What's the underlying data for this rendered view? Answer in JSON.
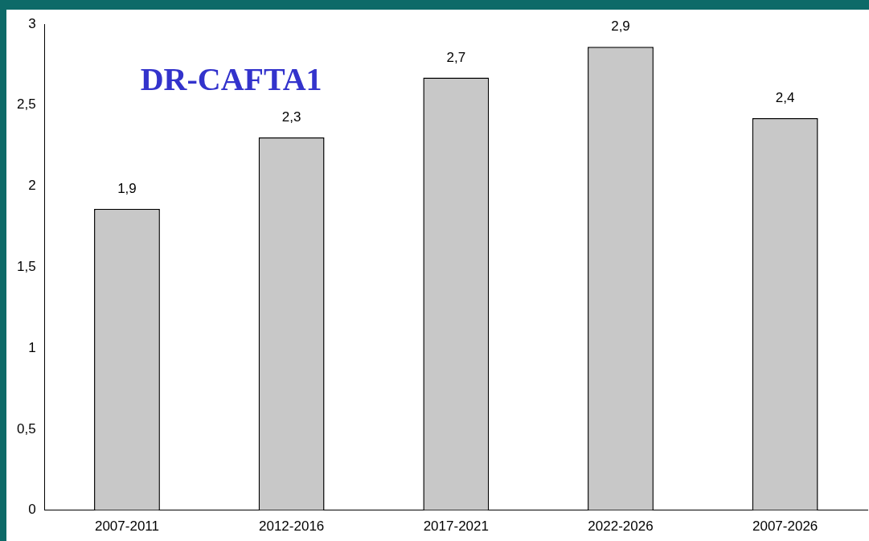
{
  "chart_data": {
    "type": "bar",
    "title": "DR-CAFTA1",
    "categories": [
      "2007-2011",
      "2012-2016",
      "2017-2021",
      "2022-2026",
      "2007-2026"
    ],
    "values": [
      1.86,
      2.3,
      2.67,
      2.86,
      2.42
    ],
    "value_labels": [
      "1,9",
      "2,3",
      "2,7",
      "2,9",
      "2,4"
    ],
    "color": "#c8c8c8",
    "ylim": [
      0,
      3
    ],
    "yticks": [
      0,
      {
        "value": 0.5,
        "label": "0,5"
      },
      1,
      {
        "value": 1.5,
        "label": "1,5"
      },
      2,
      {
        "value": 2.5,
        "label": "2,5"
      },
      3
    ],
    "grid": false,
    "legend": false
  }
}
